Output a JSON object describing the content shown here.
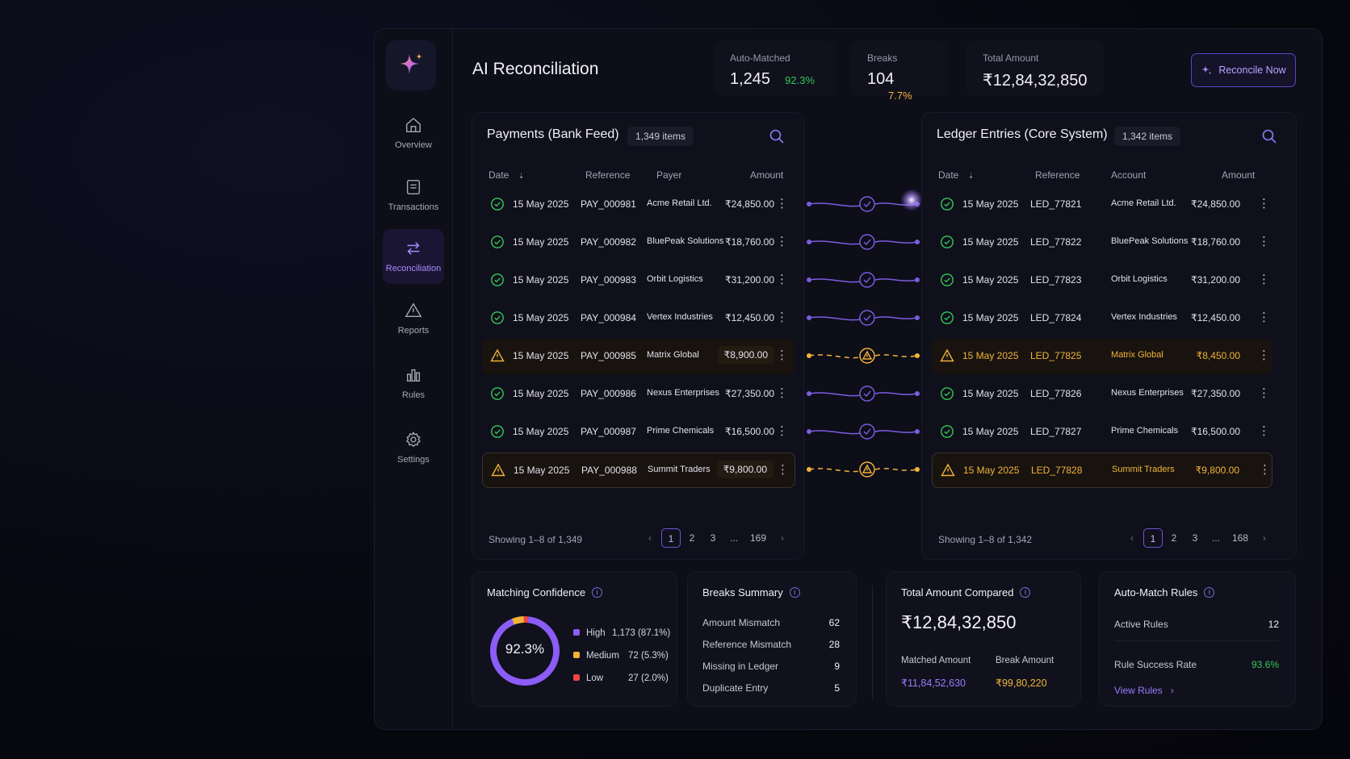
{
  "app": {
    "title": "AI Reconciliation"
  },
  "sidebar": {
    "items": [
      {
        "label": "Overview",
        "icon": "home-icon",
        "active": false
      },
      {
        "label": "Transactions",
        "icon": "document-icon",
        "active": false
      },
      {
        "label": "Reconciliation",
        "icon": "swap-icon",
        "active": true
      },
      {
        "label": "Reports",
        "icon": "warning-icon",
        "active": false
      },
      {
        "label": "Rules",
        "icon": "bar-chart-icon",
        "active": false
      },
      {
        "label": "Settings",
        "icon": "gear-icon",
        "active": false
      }
    ]
  },
  "stats": {
    "auto_matched": {
      "label": "Auto-Matched",
      "value": "1,245",
      "pct": "92.3%"
    },
    "breaks": {
      "label": "Breaks",
      "value": "104",
      "pct": "7.7%"
    },
    "total": {
      "label": "Total Amount",
      "value": "₹12,84,32,850"
    }
  },
  "actions": {
    "reconcile_label": "Reconcile Now"
  },
  "colors": {
    "accent": "#8b5cf6",
    "success": "#34c759",
    "warning": "#f2b338",
    "danger": "#ef4444"
  },
  "payments": {
    "title": "Payments (Bank Feed)",
    "count": "1,349 items",
    "columns": [
      "Date",
      "Reference",
      "Payer",
      "Amount"
    ],
    "rows": [
      {
        "status": "matched",
        "date": "15 May 2025",
        "ref": "PAY_000981",
        "party": "Acme Retail Ltd.",
        "amount": "₹24,850.00"
      },
      {
        "status": "matched",
        "date": "15 May 2025",
        "ref": "PAY_000982",
        "party": "BluePeak Solutions",
        "amount": "₹18,760.00"
      },
      {
        "status": "matched",
        "date": "15 May 2025",
        "ref": "PAY_000983",
        "party": "Orbit Logistics",
        "amount": "₹31,200.00"
      },
      {
        "status": "matched",
        "date": "15 May 2025",
        "ref": "PAY_000984",
        "party": "Vertex Industries",
        "amount": "₹12,450.00"
      },
      {
        "status": "warning",
        "date": "15 May 2025",
        "ref": "PAY_000985",
        "party": "Matrix Global",
        "amount": "₹8,900.00"
      },
      {
        "status": "matched",
        "date": "15 May 2025",
        "ref": "PAY_000986",
        "party": "Nexus Enterprises",
        "amount": "₹27,350.00"
      },
      {
        "status": "matched",
        "date": "15 May 2025",
        "ref": "PAY_000987",
        "party": "Prime Chemicals",
        "amount": "₹16,500.00"
      },
      {
        "status": "warning",
        "date": "15 May 2025",
        "ref": "PAY_000988",
        "party": "Summit Traders",
        "amount": "₹9,800.00"
      }
    ],
    "showing": "Showing 1–8 of 1,349",
    "pages": [
      "1",
      "2",
      "3",
      "...",
      "169"
    ]
  },
  "ledger": {
    "title": "Ledger Entries (Core System)",
    "count": "1,342 items",
    "columns": [
      "Date",
      "Reference",
      "Account",
      "Amount"
    ],
    "rows": [
      {
        "status": "matched",
        "date": "15 May 2025",
        "ref": "LED_77821",
        "party": "Acme Retail Ltd.",
        "amount": "₹24,850.00"
      },
      {
        "status": "matched",
        "date": "15 May 2025",
        "ref": "LED_77822",
        "party": "BluePeak Solutions",
        "amount": "₹18,760.00"
      },
      {
        "status": "matched",
        "date": "15 May 2025",
        "ref": "LED_77823",
        "party": "Orbit Logistics",
        "amount": "₹31,200.00"
      },
      {
        "status": "matched",
        "date": "15 May 2025",
        "ref": "LED_77824",
        "party": "Vertex Industries",
        "amount": "₹12,450.00"
      },
      {
        "status": "warning",
        "date": "15 May 2025",
        "ref": "LED_77825",
        "party": "Matrix Global",
        "amount": "₹8,450.00"
      },
      {
        "status": "matched",
        "date": "15 May 2025",
        "ref": "LED_77826",
        "party": "Nexus Enterprises",
        "amount": "₹27,350.00"
      },
      {
        "status": "matched",
        "date": "15 May 2025",
        "ref": "LED_77827",
        "party": "Prime Chemicals",
        "amount": "₹16,500.00"
      },
      {
        "status": "warning",
        "date": "15 May 2025",
        "ref": "LED_77828",
        "party": "Summit Traders",
        "amount": "₹9,800.00"
      }
    ],
    "showing": "Showing 1–8 of 1,342",
    "pages": [
      "1",
      "2",
      "3",
      "...",
      "168"
    ]
  },
  "confidence": {
    "title": "Matching Confidence",
    "center": "92.3%",
    "legend": [
      {
        "label": "High",
        "value": "1,173 (87.1%)",
        "color": "#8b5cf6",
        "share": 0.871
      },
      {
        "label": "Medium",
        "value": "72 (5.3%)",
        "color": "#f2b338",
        "share": 0.053
      },
      {
        "label": "Low",
        "value": "27 (2.0%)",
        "color": "#ef4444",
        "share": 0.02
      }
    ]
  },
  "breaks_summary": {
    "title": "Breaks Summary",
    "items": [
      {
        "label": "Amount Mismatch",
        "value": "62"
      },
      {
        "label": "Reference Mismatch",
        "value": "28"
      },
      {
        "label": "Missing in Ledger",
        "value": "9"
      },
      {
        "label": "Duplicate Entry",
        "value": "5"
      }
    ]
  },
  "total_compared": {
    "title": "Total Amount Compared",
    "value": "₹12,84,32,850",
    "matched_label": "Matched Amount",
    "matched_value": "₹11,84,52,630",
    "break_label": "Break Amount",
    "break_value": "₹99,80,220"
  },
  "rules": {
    "title": "Auto-Match Rules",
    "active_label": "Active Rules",
    "active_value": "12",
    "success_label": "Rule Success Rate",
    "success_value": "93.6%",
    "view_label": "View Rules"
  }
}
